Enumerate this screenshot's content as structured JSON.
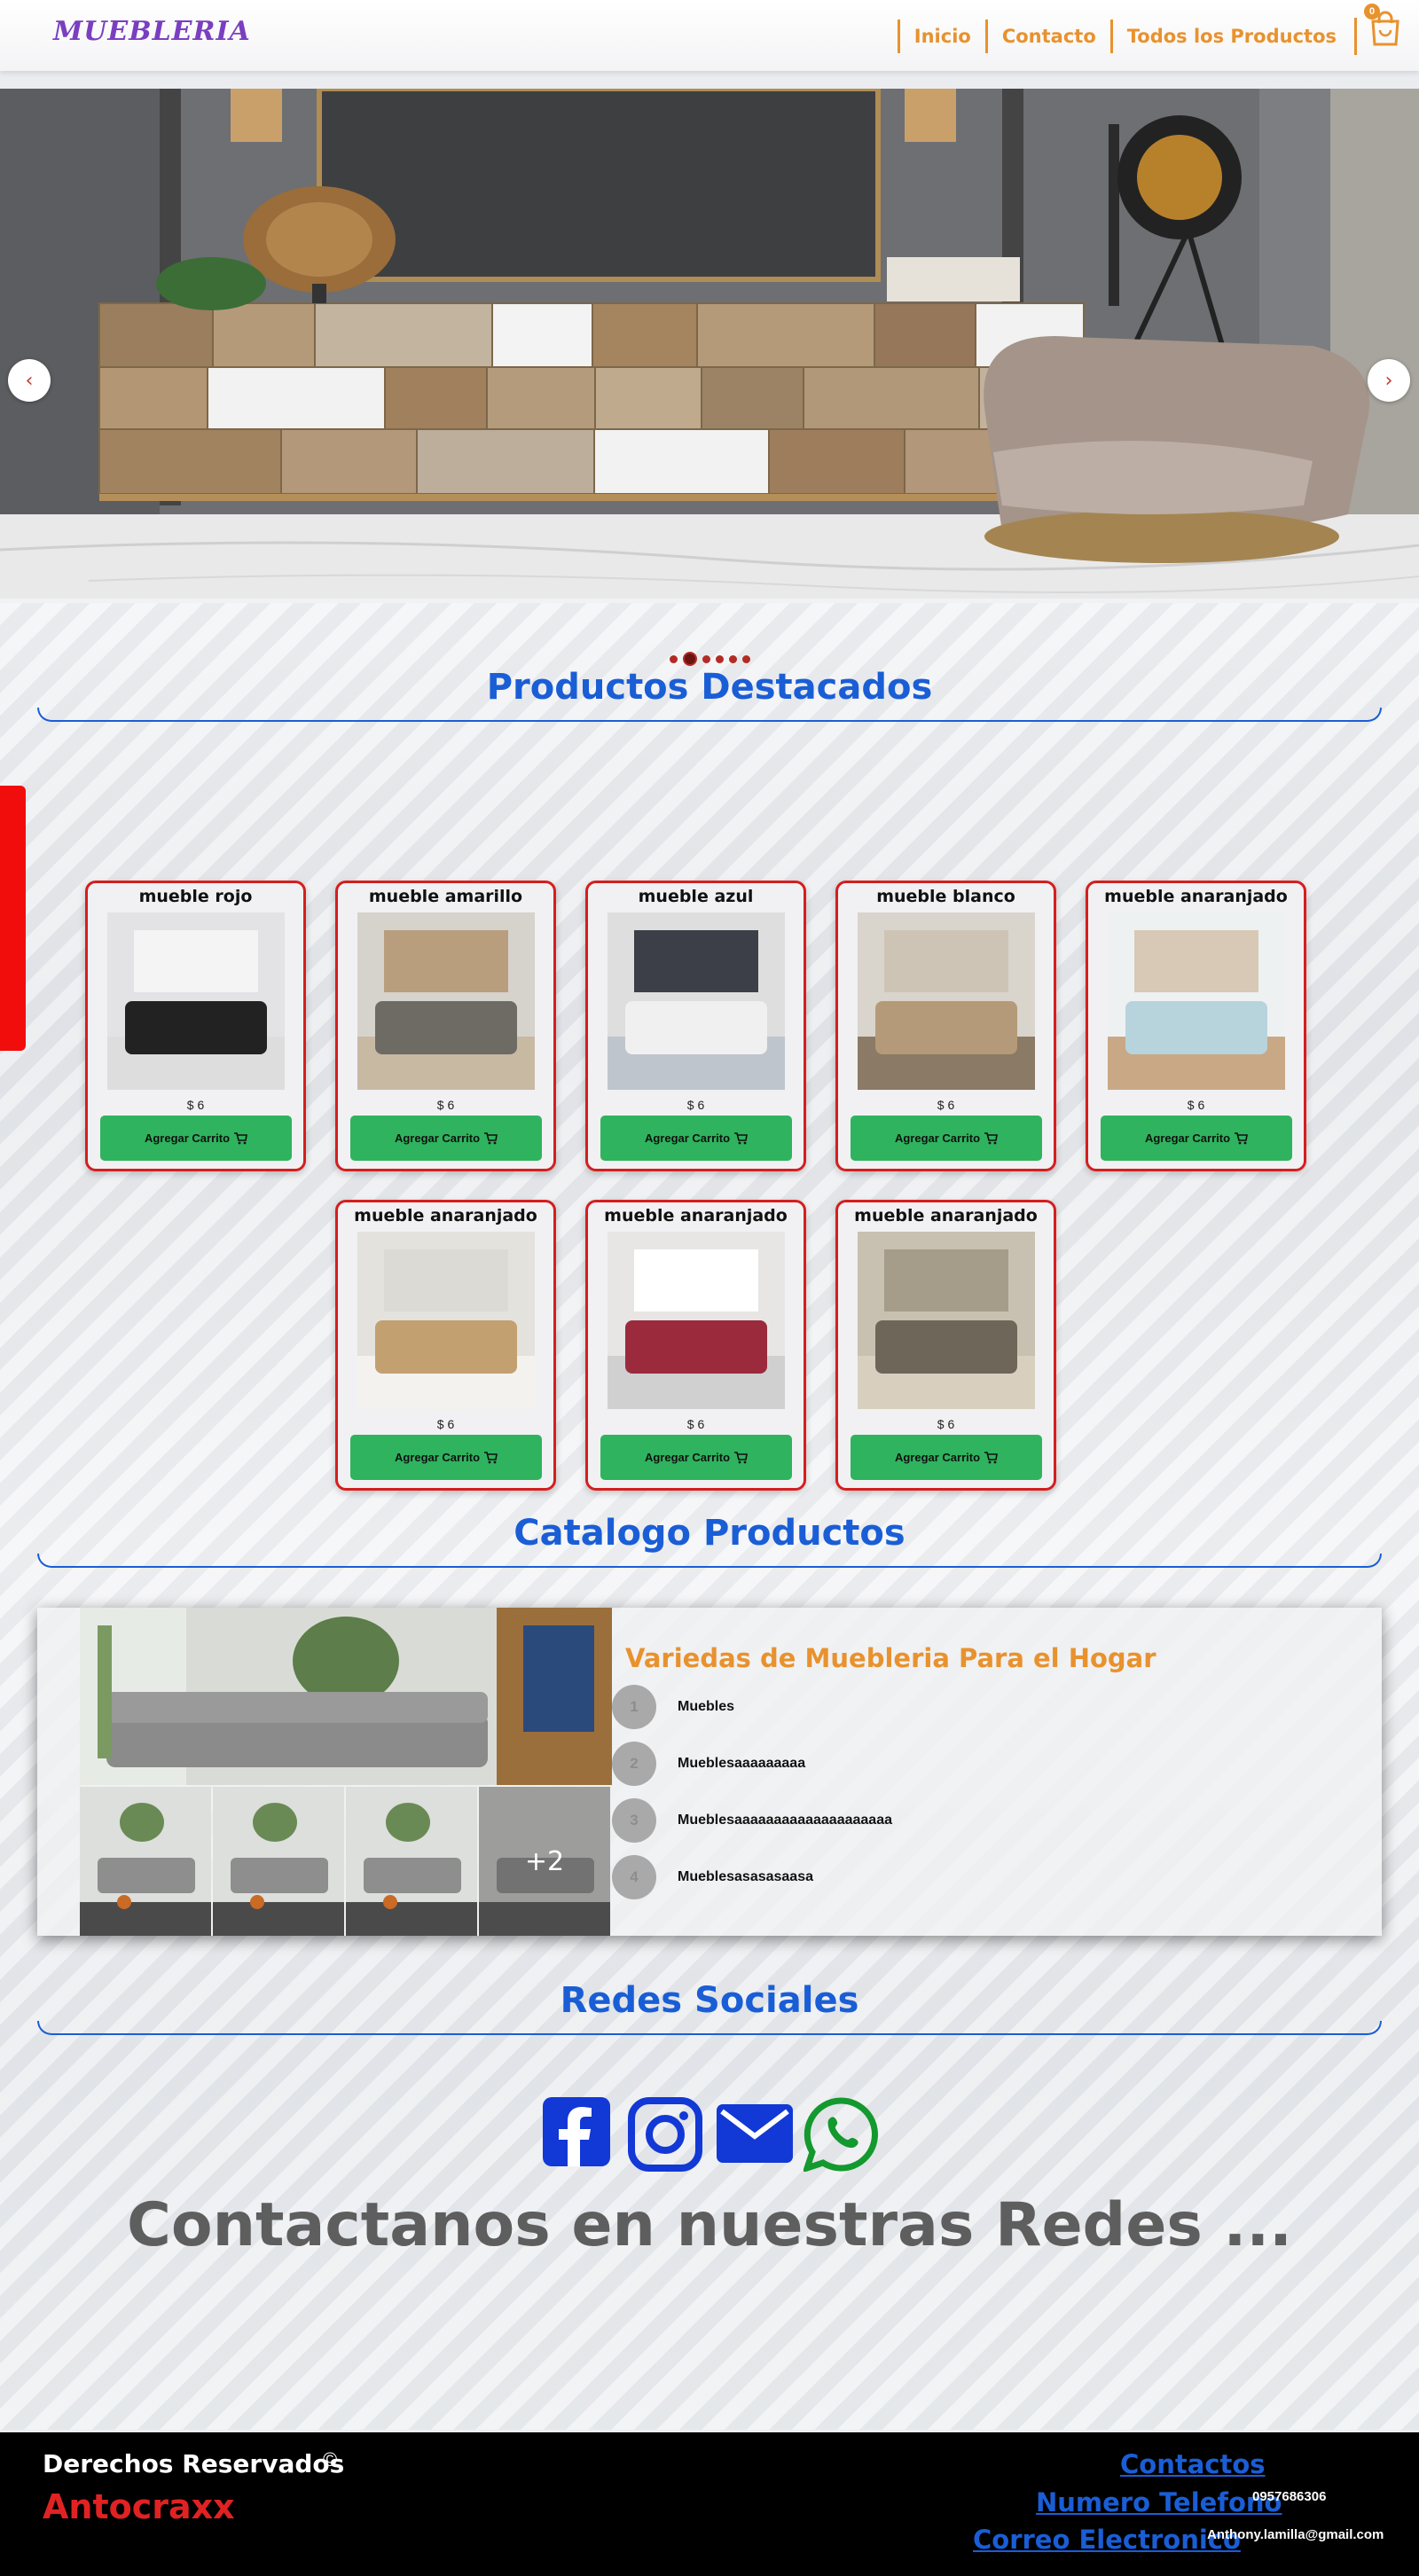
{
  "navbar": {
    "brand": "MUEBLERIA",
    "links": [
      "Inicio",
      "Contacto",
      "Todos los Productos"
    ],
    "cart_count": "0"
  },
  "carousel": {
    "prev_label": "‹",
    "next_label": "›",
    "slide_count": 6,
    "active_slide": 1
  },
  "featured": {
    "title": "Productos Destacados",
    "products": [
      {
        "name": "mueble rojo",
        "price": "$ 6",
        "button": "Agregar Carrito"
      },
      {
        "name": "mueble amarillo",
        "price": "$ 6",
        "button": "Agregar Carrito"
      },
      {
        "name": "mueble azul",
        "price": "$ 6",
        "button": "Agregar Carrito"
      },
      {
        "name": "mueble blanco",
        "price": "$ 6",
        "button": "Agregar Carrito"
      },
      {
        "name": "mueble anaranjado",
        "price": "$ 6",
        "button": "Agregar Carrito"
      },
      {
        "name": "mueble anaranjado",
        "price": "$ 6",
        "button": "Agregar Carrito"
      },
      {
        "name": "mueble anaranjado",
        "price": "$ 6",
        "button": "Agregar Carrito"
      },
      {
        "name": "mueble anaranjado",
        "price": "$ 6",
        "button": "Agregar Carrito"
      }
    ]
  },
  "catalog": {
    "title": "Catalogo Productos",
    "heading": "Variedas de Muebleria Para el Hogar",
    "more_images": "+2",
    "items": [
      {
        "num": "1",
        "label": "Muebles"
      },
      {
        "num": "2",
        "label": "Mueblesaaaaaaaaa"
      },
      {
        "num": "3",
        "label": "Mueblesaaaaaaaaaaaaaaaaaaaa"
      },
      {
        "num": "4",
        "label": "Mueblesasasasaasa"
      }
    ]
  },
  "social": {
    "title": "Redes Sociales",
    "icons": [
      "facebook-icon",
      "instagram-icon",
      "mail-icon",
      "whatsapp-icon"
    ],
    "tagline": "Contactanos en nuestras Redes ..."
  },
  "footer": {
    "rights": "Derechos Reservados",
    "copyright_symbol": "©",
    "brand": "Antocraxx",
    "contacts_link": "Contactos",
    "phone_link": "Numero Telefono",
    "phone_value": "0957686306",
    "email_link": "Correo Electronico",
    "email_value": "Anthony.lamilla@gmail.com"
  },
  "colors": {
    "accent_orange": "#e8922e",
    "title_blue": "#1a5ed6",
    "card_border_red": "#d51e1e",
    "button_green": "#2fb35e",
    "brand_red": "#e02222"
  }
}
